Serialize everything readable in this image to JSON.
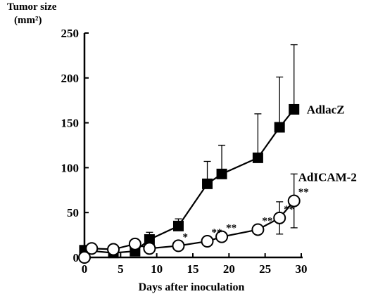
{
  "chart_data": {
    "type": "line",
    "ylabel_line1": "Tumor size",
    "ylabel_line2": "(mm²)",
    "xlabel": "Days after inoculation",
    "xlim": [
      0,
      30
    ],
    "ylim": [
      0,
      250
    ],
    "x_ticks": [
      0,
      5,
      10,
      15,
      20,
      25,
      30
    ],
    "y_ticks": [
      0,
      50,
      100,
      150,
      200,
      250
    ],
    "series": [
      {
        "name": "AdlacZ",
        "marker": "filled-square",
        "color": "#000000",
        "x": [
          0,
          4,
          7,
          9,
          13,
          17,
          19,
          24,
          27,
          29
        ],
        "y": [
          8,
          5,
          7,
          20,
          35,
          82,
          93,
          111,
          145,
          165
        ],
        "err": [
          0,
          0,
          0,
          8,
          8,
          25,
          32,
          49,
          56,
          72
        ]
      },
      {
        "name": "AdICAM-2",
        "marker": "open-circle",
        "color": "#000000",
        "x": [
          0,
          1,
          4,
          7,
          9,
          13,
          17,
          19,
          24,
          27,
          29
        ],
        "y": [
          0,
          10,
          9,
          15,
          10,
          13,
          18,
          23,
          31,
          44,
          63
        ],
        "err": [
          0,
          0,
          0,
          0,
          0,
          0,
          0,
          0,
          0,
          18,
          30
        ],
        "significance": [
          "",
          "",
          "",
          "",
          "",
          "*",
          "**",
          "**",
          "**",
          "**",
          "**"
        ]
      }
    ]
  }
}
